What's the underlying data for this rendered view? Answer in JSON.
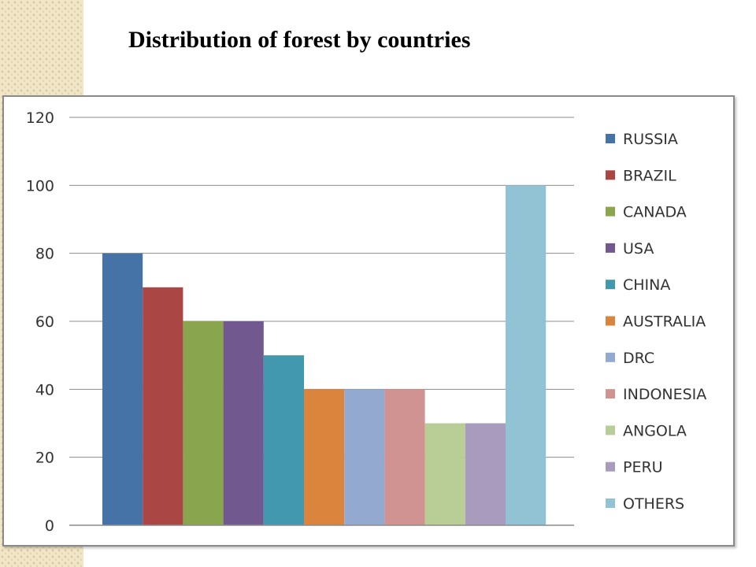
{
  "title": "Distribution of forest by countries",
  "chart_data": {
    "type": "bar",
    "title": "",
    "xlabel": "",
    "ylabel": "",
    "ylim": [
      0,
      120
    ],
    "yticks": [
      0,
      20,
      40,
      60,
      80,
      100,
      120
    ],
    "grid": true,
    "legend_position": "right",
    "series": [
      {
        "name": "RUSSIA",
        "value": 80,
        "color": "#4572a7"
      },
      {
        "name": "BRAZIL",
        "value": 70,
        "color": "#aa4643"
      },
      {
        "name": "CANADA",
        "value": 60,
        "color": "#89a54e"
      },
      {
        "name": "USA",
        "value": 60,
        "color": "#71588f"
      },
      {
        "name": "CHINA",
        "value": 50,
        "color": "#4198af"
      },
      {
        "name": "AUSTRALIA",
        "value": 40,
        "color": "#db843d"
      },
      {
        "name": "DRC",
        "value": 40,
        "color": "#93a9cf"
      },
      {
        "name": "INDONESIA",
        "value": 40,
        "color": "#d19392"
      },
      {
        "name": "ANGOLA",
        "value": 30,
        "color": "#b9cd96"
      },
      {
        "name": "PERU",
        "value": 30,
        "color": "#a99bbd"
      },
      {
        "name": "OTHERS",
        "value": 100,
        "color": "#92c3d4"
      }
    ]
  }
}
